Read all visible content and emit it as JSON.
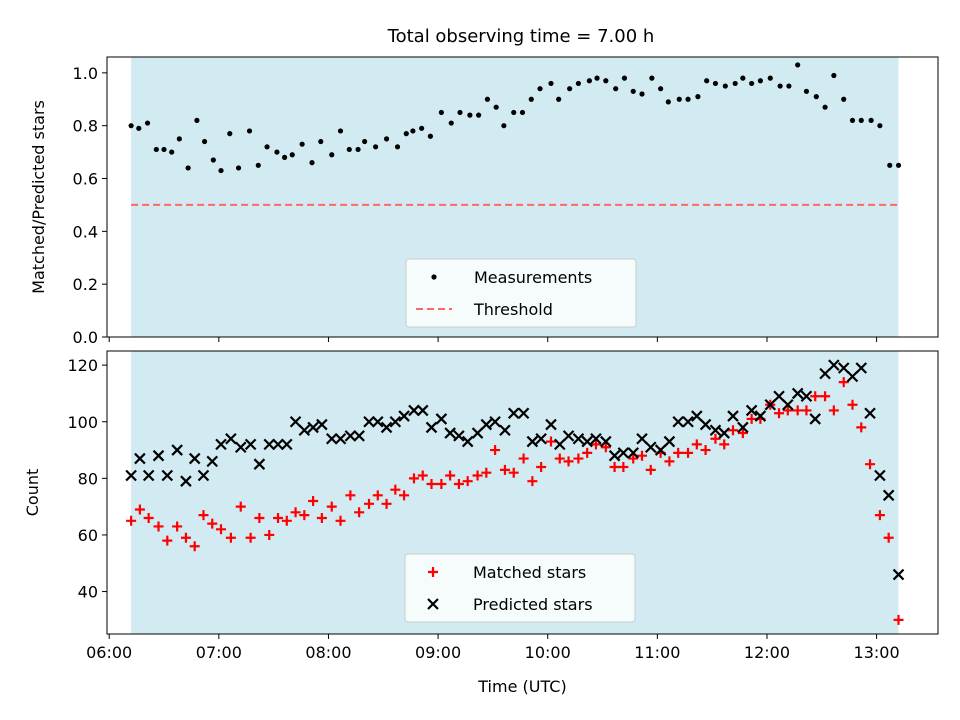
{
  "figure": {
    "title": "Total observing time = 7.00 h"
  },
  "chart_data": [
    {
      "type": "scatter",
      "ylabel": "Matched/Predicted stars",
      "xlabel": "",
      "xlim": [
        5.98,
        13.56
      ],
      "ylim": [
        0.0,
        1.06
      ],
      "yticks": [
        0.0,
        0.2,
        0.4,
        0.6,
        0.8,
        1.0
      ],
      "yticklabels": [
        "0.0",
        "0.2",
        "0.4",
        "0.6",
        "0.8",
        "1.0"
      ],
      "span": {
        "x0": 6.2,
        "x1": 13.2,
        "color": "#add8e6"
      },
      "threshold": 0.5,
      "legend": {
        "position": "lower-center",
        "labels": [
          "Measurements",
          "Threshold"
        ]
      },
      "series": [
        {
          "name": "Measurements",
          "color": "#000000",
          "marker": "dot",
          "x": [
            6.2,
            6.27,
            6.35,
            6.43,
            6.5,
            6.57,
            6.64,
            6.72,
            6.8,
            6.87,
            6.95,
            7.02,
            7.1,
            7.18,
            7.28,
            7.36,
            7.44,
            7.53,
            7.6,
            7.67,
            7.76,
            7.85,
            7.93,
            8.03,
            8.11,
            8.19,
            8.27,
            8.33,
            8.43,
            8.53,
            8.63,
            8.71,
            8.77,
            8.85,
            8.93,
            9.03,
            9.12,
            9.2,
            9.29,
            9.37,
            9.45,
            9.53,
            9.6,
            9.69,
            9.77,
            9.85,
            9.93,
            10.03,
            10.1,
            10.2,
            10.28,
            10.38,
            10.45,
            10.53,
            10.62,
            10.7,
            10.78,
            10.86,
            10.95,
            11.03,
            11.1,
            11.2,
            11.28,
            11.37,
            11.45,
            11.53,
            11.62,
            11.71,
            11.78,
            11.86,
            11.94,
            12.03,
            12.12,
            12.2,
            12.28,
            12.36,
            12.45,
            12.53,
            12.61,
            12.7,
            12.78,
            12.86,
            12.95,
            13.03,
            13.12,
            13.2
          ],
          "y": [
            0.8,
            0.79,
            0.81,
            0.71,
            0.71,
            0.7,
            0.75,
            0.64,
            0.82,
            0.74,
            0.67,
            0.63,
            0.77,
            0.64,
            0.78,
            0.65,
            0.72,
            0.7,
            0.68,
            0.69,
            0.73,
            0.66,
            0.74,
            0.69,
            0.78,
            0.71,
            0.71,
            0.74,
            0.72,
            0.75,
            0.72,
            0.77,
            0.78,
            0.79,
            0.76,
            0.85,
            0.81,
            0.85,
            0.84,
            0.84,
            0.9,
            0.87,
            0.8,
            0.85,
            0.85,
            0.9,
            0.94,
            0.96,
            0.9,
            0.94,
            0.96,
            0.97,
            0.98,
            0.97,
            0.94,
            0.98,
            0.93,
            0.92,
            0.98,
            0.94,
            0.89,
            0.9,
            0.9,
            0.91,
            0.97,
            0.96,
            0.95,
            0.96,
            0.98,
            0.96,
            0.97,
            0.98,
            0.95,
            0.95,
            1.03,
            0.93,
            0.91,
            0.87,
            0.99,
            0.9,
            0.82,
            0.82,
            0.82,
            0.8,
            0.65,
            0.65
          ]
        },
        {
          "name": "Threshold",
          "color": "#ff6666",
          "style": "dashed"
        }
      ]
    },
    {
      "type": "scatter",
      "ylabel": "Count",
      "xlabel": "Time (UTC)",
      "xlim": [
        5.98,
        13.56
      ],
      "ylim": [
        25,
        125
      ],
      "yticks": [
        40,
        60,
        80,
        100,
        120
      ],
      "yticklabels": [
        "40",
        "60",
        "80",
        "100",
        "120"
      ],
      "xticks": [
        6,
        7,
        8,
        9,
        10,
        11,
        12,
        13
      ],
      "xticklabels": [
        "06:00",
        "07:00",
        "08:00",
        "09:00",
        "10:00",
        "11:00",
        "12:00",
        "13:00"
      ],
      "span": {
        "x0": 6.2,
        "x1": 13.2,
        "color": "#add8e6"
      },
      "legend": {
        "position": "lower-center",
        "labels": [
          "Matched stars",
          "Predicted stars"
        ]
      },
      "series": [
        {
          "name": "Matched stars",
          "color": "#ff0000",
          "marker": "plus",
          "x": [
            6.2,
            6.28,
            6.36,
            6.45,
            6.53,
            6.62,
            6.7,
            6.78,
            6.86,
            6.94,
            7.02,
            7.11,
            7.2,
            7.29,
            7.37,
            7.46,
            7.54,
            7.62,
            7.7,
            7.78,
            7.86,
            7.94,
            8.03,
            8.11,
            8.2,
            8.28,
            8.37,
            8.45,
            8.53,
            8.61,
            8.69,
            8.78,
            8.86,
            8.94,
            9.03,
            9.11,
            9.19,
            9.27,
            9.36,
            9.44,
            9.52,
            9.61,
            9.69,
            9.78,
            9.86,
            9.94,
            10.03,
            10.11,
            10.19,
            10.28,
            10.36,
            10.44,
            10.53,
            10.61,
            10.69,
            10.78,
            10.86,
            10.94,
            11.03,
            11.11,
            11.19,
            11.28,
            11.36,
            11.44,
            11.53,
            11.61,
            11.69,
            11.78,
            11.86,
            11.94,
            12.03,
            12.11,
            12.19,
            12.28,
            12.36,
            12.44,
            12.53,
            12.61,
            12.7,
            12.78,
            12.86,
            12.94,
            13.03,
            13.11,
            13.2
          ],
          "y": [
            65,
            69,
            66,
            63,
            58,
            63,
            59,
            56,
            67,
            64,
            62,
            59,
            70,
            59,
            66,
            60,
            66,
            65,
            68,
            67,
            72,
            66,
            70,
            65,
            74,
            68,
            71,
            74,
            71,
            76,
            74,
            80,
            81,
            78,
            78,
            81,
            78,
            79,
            81,
            82,
            90,
            83,
            82,
            87,
            79,
            84,
            93,
            87,
            86,
            87,
            89,
            92,
            91,
            84,
            84,
            87,
            88,
            83,
            89,
            86,
            89,
            89,
            92,
            90,
            94,
            92,
            97,
            96,
            101,
            101,
            106,
            103,
            104,
            104,
            104,
            109,
            109,
            104,
            114,
            106,
            98,
            85,
            67,
            59,
            30
          ]
        },
        {
          "name": "Predicted stars",
          "color": "#000000",
          "marker": "x",
          "x": [
            6.2,
            6.28,
            6.36,
            6.45,
            6.53,
            6.62,
            6.7,
            6.78,
            6.86,
            6.94,
            7.02,
            7.11,
            7.2,
            7.29,
            7.37,
            7.46,
            7.54,
            7.62,
            7.7,
            7.78,
            7.86,
            7.94,
            8.03,
            8.11,
            8.2,
            8.28,
            8.37,
            8.45,
            8.53,
            8.61,
            8.69,
            8.78,
            8.86,
            8.94,
            9.03,
            9.11,
            9.19,
            9.27,
            9.36,
            9.44,
            9.52,
            9.61,
            9.69,
            9.78,
            9.86,
            9.94,
            10.03,
            10.11,
            10.19,
            10.28,
            10.36,
            10.44,
            10.53,
            10.61,
            10.69,
            10.78,
            10.86,
            10.94,
            11.03,
            11.11,
            11.19,
            11.28,
            11.36,
            11.44,
            11.53,
            11.61,
            11.69,
            11.78,
            11.86,
            11.94,
            12.03,
            12.11,
            12.19,
            12.28,
            12.36,
            12.44,
            12.53,
            12.61,
            12.7,
            12.78,
            12.86,
            12.94,
            13.03,
            13.11,
            13.2
          ],
          "y": [
            81,
            87,
            81,
            88,
            81,
            90,
            79,
            87,
            81,
            86,
            92,
            94,
            91,
            92,
            85,
            92,
            92,
            92,
            100,
            97,
            98,
            99,
            94,
            94,
            95,
            95,
            100,
            100,
            98,
            100,
            102,
            104,
            104,
            98,
            101,
            96,
            95,
            93,
            96,
            99,
            100,
            97,
            103,
            103,
            93,
            94,
            99,
            92,
            95,
            94,
            93,
            94,
            93,
            88,
            89,
            89,
            94,
            91,
            90,
            93,
            100,
            100,
            102,
            99,
            97,
            96,
            102,
            98,
            104,
            102,
            106,
            109,
            106,
            110,
            109,
            101,
            117,
            120,
            119,
            116,
            119,
            103,
            81,
            74,
            46
          ]
        }
      ]
    }
  ]
}
